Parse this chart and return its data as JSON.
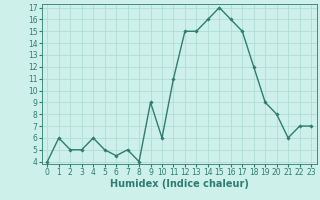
{
  "xlabel": "Humidex (Indice chaleur)",
  "x": [
    0,
    1,
    2,
    3,
    4,
    5,
    6,
    7,
    8,
    9,
    10,
    11,
    12,
    13,
    14,
    15,
    16,
    17,
    18,
    19,
    20,
    21,
    22,
    23
  ],
  "y": [
    4,
    6,
    5,
    5,
    6,
    5,
    4.5,
    5,
    4,
    9,
    6,
    11,
    15,
    15,
    16,
    17,
    16,
    15,
    12,
    9,
    8,
    6,
    7,
    7
  ],
  "ylim_min": 4,
  "ylim_max": 17,
  "yticks": [
    4,
    5,
    6,
    7,
    8,
    9,
    10,
    11,
    12,
    13,
    14,
    15,
    16,
    17
  ],
  "line_color": "#2e7d6e",
  "marker": "D",
  "marker_size": 1.8,
  "line_width": 1.0,
  "bg_color": "#cdf0ea",
  "grid_color": "#b0ddd5",
  "tick_label_fontsize": 5.5,
  "xlabel_fontsize": 7.0
}
